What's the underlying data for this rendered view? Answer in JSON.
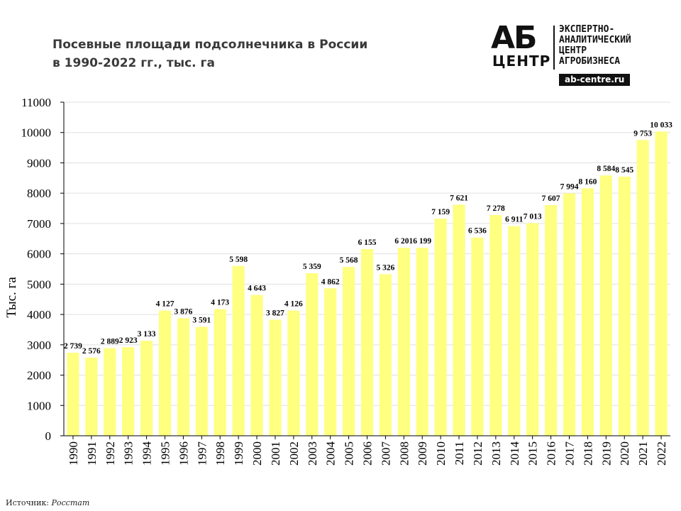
{
  "chart_title_line1": "Посевные площади подсолнечника  в России",
  "chart_title_line2": "в 1990-2022 гг., тыс. га",
  "logo": {
    "mark_top": "АБ",
    "mark_bottom": "ЦЕНТР",
    "text_lines": [
      "ЭКСПЕРТНО-",
      "АНАЛИТИЧЕСКИЙ",
      "ЦЕНТР",
      "АГРОБИЗНЕСА"
    ],
    "site": "ab-centre.ru"
  },
  "source_label": "Источник: ",
  "source_value": "Росстат",
  "colors": {
    "bar": "#ffff80",
    "axis": "#000000",
    "grid": "#e0e0e0"
  },
  "chart_data": {
    "type": "bar",
    "title": "Посевные площади подсолнечника  в России в 1990-2022 гг., тыс. га",
    "xlabel": "",
    "ylabel": "Тыс. га",
    "ylim": [
      0,
      11000
    ],
    "yticks": [
      0,
      1000,
      2000,
      3000,
      4000,
      5000,
      6000,
      7000,
      8000,
      9000,
      10000,
      11000
    ],
    "grid": true,
    "categories": [
      "1990",
      "1991",
      "1992",
      "1993",
      "1994",
      "1995",
      "1996",
      "1997",
      "1998",
      "1999",
      "2000",
      "2001",
      "2002",
      "2003",
      "2004",
      "2005",
      "2006",
      "2007",
      "2008",
      "2009",
      "2010",
      "2011",
      "2012",
      "2013",
      "2014",
      "2015",
      "2016",
      "2017",
      "2018",
      "2019",
      "2020",
      "2021",
      "2022"
    ],
    "values": [
      2739,
      2576,
      2889,
      2923,
      3133,
      4127,
      3876,
      3591,
      4173,
      5598,
      4643,
      3827,
      4126,
      5359,
      4862,
      5568,
      6155,
      5326,
      6201,
      6199,
      7159,
      7621,
      6536,
      7278,
      6911,
      7013,
      7607,
      7994,
      8160,
      8584,
      8545,
      9753,
      10033
    ],
    "data_labels": [
      "2 739",
      "2 576",
      "2 889",
      "2 923",
      "3 133",
      "4 127",
      "3 876",
      "3 591",
      "4 173",
      "5 598",
      "4 643",
      "3 827",
      "4 126",
      "5 359",
      "4 862",
      "5 568",
      "6 155",
      "5 326",
      "6 201",
      "6 199",
      "7 159",
      "7 621",
      "6 536",
      "7 278",
      "6 911",
      "7 013",
      "7 607",
      "7 994",
      "8 160",
      "8 584",
      "8 545",
      "9 753",
      "10 033"
    ]
  }
}
